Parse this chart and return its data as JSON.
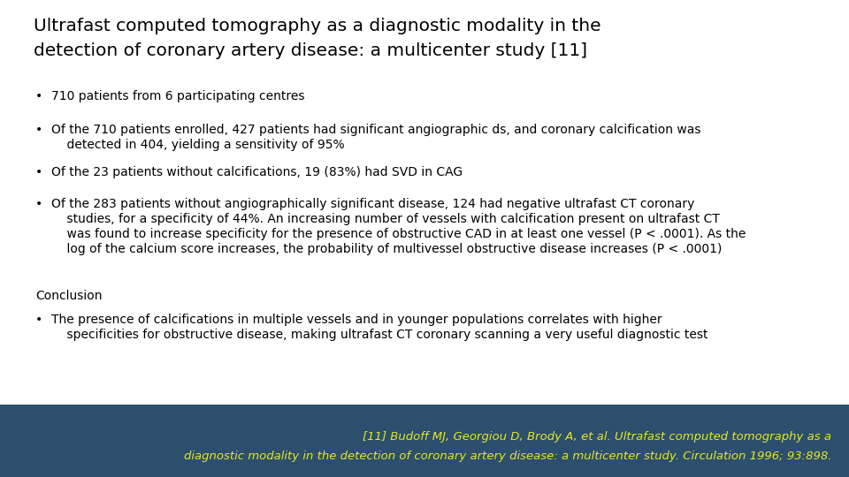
{
  "title_line1": "Ultrafast computed tomography as a diagnostic modality in the",
  "title_line2": "detection of coronary artery disease: a multicenter study [11]",
  "bullet1": "710 patients from 6 participating centres",
  "bullet2a": "Of the 710 patients enrolled, 427 patients had significant angiographic ds, and coronary calcification was",
  "bullet2b": "    detected in 404, yielding a sensitivity of 95%",
  "bullet3": "Of the 23 patients without calcifications, 19 (83%) had SVD in CAG",
  "bullet4a": "Of the 283 patients without angiographically significant disease, 124 had negative ultrafast CT coronary",
  "bullet4b": "    studies, for a specificity of 44%. An increasing number of vessels with calcification present on ultrafast CT",
  "bullet4c": "    was found to increase specificity for the presence of obstructive CAD in at least one vessel (P < .0001). As the",
  "bullet4d": "    log of the calcium score increases, the probability of multivessel obstructive disease increases (P < .0001)",
  "conclusion_label": "Conclusion",
  "conc_bullet_a": "The presence of calcifications in multiple vessels and in younger populations correlates with higher",
  "conc_bullet_b": "    specificities for obstructive disease, making ultrafast CT coronary scanning a very useful diagnostic test",
  "footer_line1": "[11] Budoff MJ, Georgiou D, Brody A, et al. Ultrafast computed tomography as a",
  "footer_line2": "diagnostic modality in the detection of coronary artery disease: a multicenter study. Circulation 1996; 93:898.",
  "bg_color": "#ffffff",
  "footer_bg_color": "#2c4f6e",
  "footer_text_color": "#e6e820",
  "title_color": "#000000",
  "body_color": "#000000",
  "title_fontsize": 14.5,
  "body_fontsize": 10.0,
  "footer_fontsize": 9.5,
  "conclusion_fontsize": 10.0
}
